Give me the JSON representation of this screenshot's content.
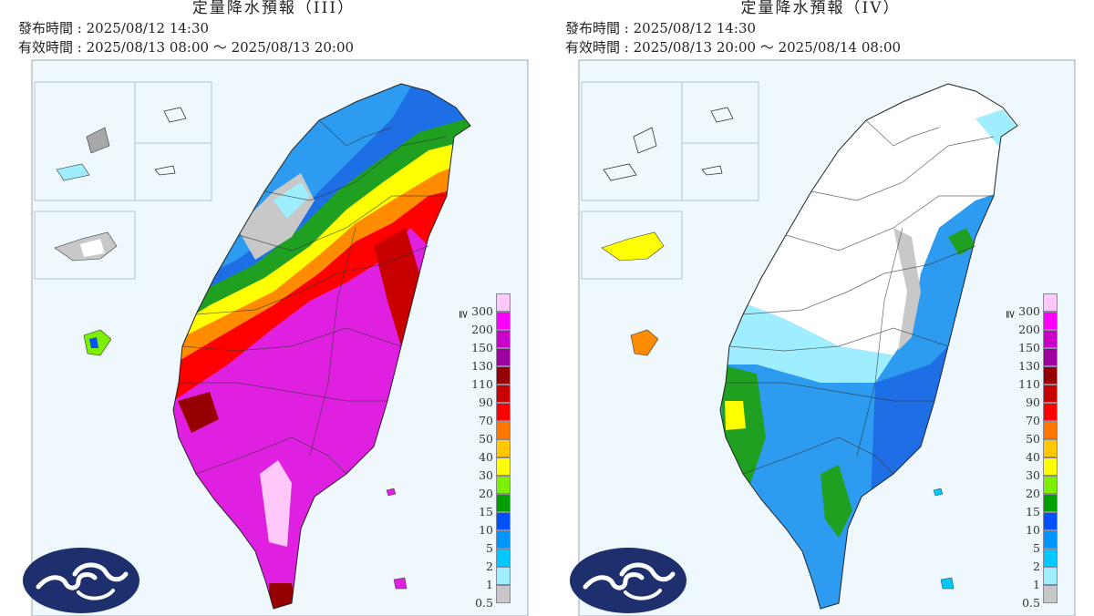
{
  "panels": [
    {
      "title": "定量降水預報（III）",
      "issue_label": "發布時間",
      "issue_time": "2025/08/12 14:30",
      "valid_label": "有效時間",
      "valid_time": "2025/08/13 08:00 ～ 2025/08/13 20:00",
      "dominant_colors": [
        "#e020e0",
        "#ff0000",
        "#ff8c00",
        "#2d9bf0"
      ]
    },
    {
      "title": "定量降水預報（IV）",
      "issue_label": "發布時間",
      "issue_time": "2025/08/12 14:30",
      "valid_label": "有效時間",
      "valid_time": "2025/08/13 20:00 ～ 2025/08/14 08:00",
      "dominant_colors": [
        "#1e6fe6",
        "#2d9bf0",
        "#ffffff",
        "#20a020"
      ]
    }
  ],
  "legend": {
    "prefix": "≧",
    "levels": [
      {
        "label": "300",
        "color": "#ffc8f8"
      },
      {
        "label": "200",
        "color": "#ff00ff"
      },
      {
        "label": "150",
        "color": "#c800c8"
      },
      {
        "label": "130",
        "color": "#a000a0"
      },
      {
        "label": "110",
        "color": "#960000"
      },
      {
        "label": "90",
        "color": "#c80000"
      },
      {
        "label": "70",
        "color": "#ff0000"
      },
      {
        "label": "50",
        "color": "#ff7800"
      },
      {
        "label": "40",
        "color": "#ffc800"
      },
      {
        "label": "30",
        "color": "#ffff00"
      },
      {
        "label": "20",
        "color": "#7cf000"
      },
      {
        "label": "15",
        "color": "#00a000"
      },
      {
        "label": "10",
        "color": "#0050ff"
      },
      {
        "label": "5",
        "color": "#0096ff"
      },
      {
        "label": "2",
        "color": "#00c8ff"
      },
      {
        "label": "1",
        "color": "#9eeeff"
      },
      {
        "label": "0.5",
        "color": "#c8c8c8"
      }
    ]
  },
  "icons": {
    "logo": "cwa-cloud-logo-icon"
  }
}
